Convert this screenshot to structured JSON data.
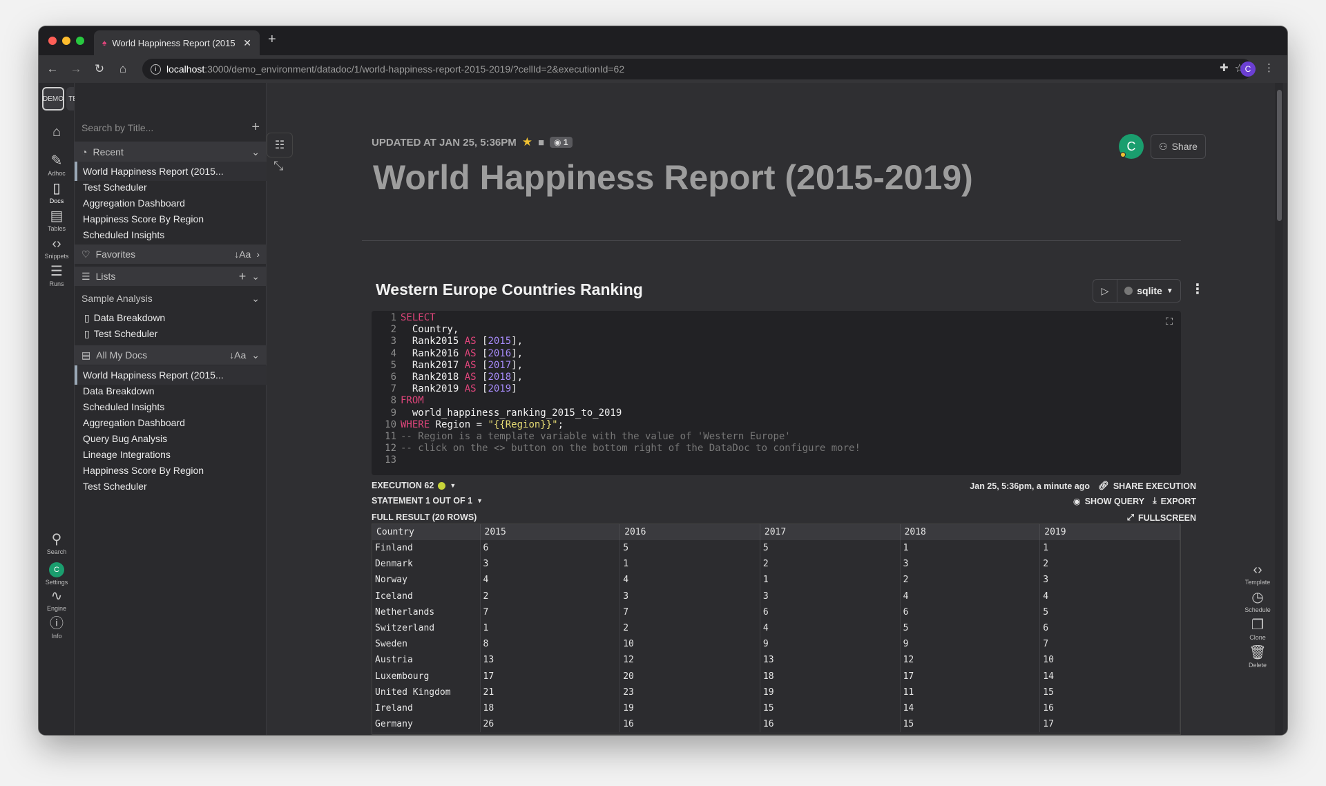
{
  "browser": {
    "tab_title": "World Happiness Report (2015",
    "url_host": "localhost",
    "url_path": ":3000/demo_environment/datadoc/1/world-happiness-report-2015-2019/?cellId=2&executionId=62",
    "profile_initial": "C"
  },
  "env": {
    "demo": "DEMO",
    "test": "TEST"
  },
  "rail": {
    "adhoc": "Adhoc",
    "docs": "Docs",
    "tables": "Tables",
    "snippets": "Snippets",
    "runs": "Runs",
    "search": "Search",
    "settings": "Settings",
    "settings_initial": "C",
    "engine": "Engine",
    "info": "Info"
  },
  "sidebar": {
    "search_placeholder": "Search by Title...",
    "recent_label": "Recent",
    "recent": [
      "World Happiness Report (2015...",
      "Test Scheduler",
      "Aggregation Dashboard",
      "Happiness Score By Region",
      "Scheduled Insights"
    ],
    "favorites_label": "Favorites",
    "sort_label": "↓Aa",
    "lists_label": "Lists",
    "sample_label": "Sample Analysis",
    "sample": [
      "Data Breakdown",
      "Test Scheduler"
    ],
    "all_label": "All My Docs",
    "all": [
      "World Happiness Report (2015...",
      "Data Breakdown",
      "Scheduled Insights",
      "Aggregation Dashboard",
      "Query Bug Analysis",
      "Lineage Integrations",
      "Happiness Score By Region",
      "Test Scheduler"
    ]
  },
  "doc": {
    "updated": "UPDATED AT JAN 25, 5:36PM",
    "viewers": "1",
    "title": "World Happiness Report (2015-2019)",
    "user_initial": "C",
    "share_label": "Share"
  },
  "cell": {
    "title": "Western Europe Countries Ranking",
    "engine": "sqlite",
    "execution": "EXECUTION 62",
    "statement": "STATEMENT 1 OUT OF 1",
    "full_result": "FULL RESULT (20 ROWS)",
    "timestamp": "Jan 25, 5:36pm, a minute ago",
    "share_execution": "SHARE EXECUTION",
    "show_query": "SHOW QUERY",
    "export": "EXPORT",
    "fullscreen": "FULLSCREEN"
  },
  "right_tools": {
    "template": "Template",
    "schedule": "Schedule",
    "clone": "Clone",
    "delete": "Delete"
  },
  "result": {
    "columns": [
      "Country",
      "2015",
      "2016",
      "2017",
      "2018",
      "2019"
    ],
    "rows": [
      [
        "Finland",
        "6",
        "5",
        "5",
        "1",
        "1"
      ],
      [
        "Denmark",
        "3",
        "1",
        "2",
        "3",
        "2"
      ],
      [
        "Norway",
        "4",
        "4",
        "1",
        "2",
        "3"
      ],
      [
        "Iceland",
        "2",
        "3",
        "3",
        "4",
        "4"
      ],
      [
        "Netherlands",
        "7",
        "7",
        "6",
        "6",
        "5"
      ],
      [
        "Switzerland",
        "1",
        "2",
        "4",
        "5",
        "6"
      ],
      [
        "Sweden",
        "8",
        "10",
        "9",
        "9",
        "7"
      ],
      [
        "Austria",
        "13",
        "12",
        "13",
        "12",
        "10"
      ],
      [
        "Luxembourg",
        "17",
        "20",
        "18",
        "17",
        "14"
      ],
      [
        "United Kingdom",
        "21",
        "23",
        "19",
        "11",
        "15"
      ],
      [
        "Ireland",
        "18",
        "19",
        "15",
        "14",
        "16"
      ],
      [
        "Germany",
        "26",
        "16",
        "16",
        "15",
        "17"
      ]
    ]
  }
}
